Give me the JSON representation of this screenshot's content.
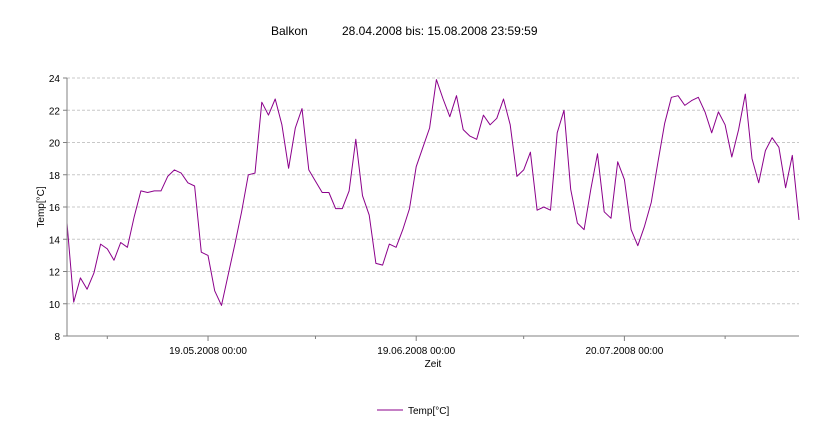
{
  "chart_data": {
    "type": "line",
    "title": "Balkon",
    "subtitle": "28.04.2008 bis: 15.08.2008 23:59:59",
    "xlabel": "Zeit",
    "ylabel": "Temp[°C]",
    "ylim": [
      8,
      24
    ],
    "yticks": [
      "8",
      "10",
      "12",
      "14",
      "16",
      "18",
      "20",
      "22",
      "24"
    ],
    "xlim": [
      "2008-04-28",
      "2008-08-15"
    ],
    "xticks": [
      {
        "date": "2008-05-19",
        "label": "19.05.2008 00:00"
      },
      {
        "date": "2008-06-19",
        "label": "19.06.2008 00:00"
      },
      {
        "date": "2008-07-20",
        "label": "20.07.2008 00:00"
      }
    ],
    "minor_xticks": [
      "2008-05-04",
      "2008-06-04",
      "2008-07-05",
      "2008-08-04"
    ],
    "grid": true,
    "legend": "bottom-center",
    "series": [
      {
        "name": "Temp[°C]",
        "color": "#8B008B",
        "x": [
          "2008-04-28",
          "2008-04-29",
          "2008-04-30",
          "2008-05-01",
          "2008-05-02",
          "2008-05-03",
          "2008-05-04",
          "2008-05-05",
          "2008-05-06",
          "2008-05-07",
          "2008-05-08",
          "2008-05-09",
          "2008-05-10",
          "2008-05-11",
          "2008-05-12",
          "2008-05-13",
          "2008-05-14",
          "2008-05-15",
          "2008-05-16",
          "2008-05-17",
          "2008-05-18",
          "2008-05-19",
          "2008-05-20",
          "2008-05-21",
          "2008-05-22",
          "2008-05-23",
          "2008-05-24",
          "2008-05-25",
          "2008-05-26",
          "2008-05-27",
          "2008-05-28",
          "2008-05-29",
          "2008-05-30",
          "2008-05-31",
          "2008-06-01",
          "2008-06-02",
          "2008-06-03",
          "2008-06-04",
          "2008-06-05",
          "2008-06-06",
          "2008-06-07",
          "2008-06-08",
          "2008-06-09",
          "2008-06-10",
          "2008-06-11",
          "2008-06-12",
          "2008-06-13",
          "2008-06-14",
          "2008-06-15",
          "2008-06-16",
          "2008-06-17",
          "2008-06-18",
          "2008-06-19",
          "2008-06-20",
          "2008-06-21",
          "2008-06-22",
          "2008-06-23",
          "2008-06-24",
          "2008-06-25",
          "2008-06-26",
          "2008-06-27",
          "2008-06-28",
          "2008-06-29",
          "2008-06-30",
          "2008-07-01",
          "2008-07-02",
          "2008-07-03",
          "2008-07-04",
          "2008-07-05",
          "2008-07-06",
          "2008-07-07",
          "2008-07-08",
          "2008-07-09",
          "2008-07-10",
          "2008-07-11",
          "2008-07-12",
          "2008-07-13",
          "2008-07-14",
          "2008-07-15",
          "2008-07-16",
          "2008-07-17",
          "2008-07-18",
          "2008-07-19",
          "2008-07-20",
          "2008-07-21",
          "2008-07-22",
          "2008-07-23",
          "2008-07-24",
          "2008-07-25",
          "2008-07-26",
          "2008-07-27",
          "2008-07-28",
          "2008-07-29",
          "2008-07-30",
          "2008-07-31",
          "2008-08-01",
          "2008-08-02",
          "2008-08-03",
          "2008-08-04",
          "2008-08-05",
          "2008-08-06",
          "2008-08-07",
          "2008-08-08",
          "2008-08-09",
          "2008-08-10",
          "2008-08-11",
          "2008-08-12",
          "2008-08-13",
          "2008-08-14",
          "2008-08-15"
        ],
        "values": [
          15.0,
          10.1,
          11.6,
          10.9,
          11.9,
          13.7,
          13.4,
          12.7,
          13.8,
          13.5,
          15.4,
          17.0,
          16.9,
          17.0,
          17.0,
          17.9,
          18.3,
          18.1,
          17.5,
          17.3,
          13.2,
          13.0,
          10.8,
          9.9,
          11.8,
          13.7,
          15.7,
          18.0,
          18.1,
          22.5,
          21.7,
          22.7,
          21.1,
          18.4,
          20.9,
          22.1,
          18.3,
          17.6,
          16.9,
          16.9,
          15.9,
          15.9,
          17.0,
          20.2,
          16.7,
          15.5,
          12.5,
          12.4,
          13.7,
          13.5,
          14.6,
          15.9,
          18.5,
          19.7,
          20.9,
          23.9,
          22.7,
          21.6,
          22.9,
          20.8,
          20.4,
          20.2,
          21.7,
          21.1,
          21.5,
          22.7,
          21.1,
          17.9,
          18.3,
          19.4,
          15.8,
          16.0,
          15.8,
          20.6,
          22.0,
          17.1,
          15.0,
          14.6,
          17.1,
          19.3,
          15.7,
          15.3,
          18.8,
          17.7,
          14.6,
          13.6,
          14.8,
          16.3,
          18.8,
          21.2,
          22.8,
          22.9,
          22.3,
          22.6,
          22.8,
          21.9,
          20.6,
          21.9,
          21.1,
          19.1,
          20.8,
          23.0,
          19.0,
          17.5,
          19.5,
          20.3,
          19.7,
          17.2,
          19.2,
          15.2
        ]
      }
    ]
  }
}
